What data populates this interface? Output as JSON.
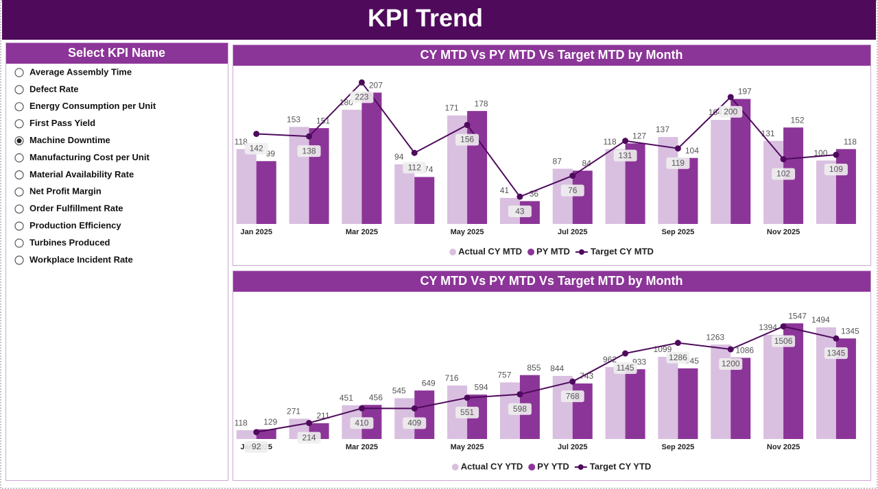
{
  "header": {
    "title": "KPI Trend"
  },
  "slicer": {
    "title": "Select KPI Name",
    "items": [
      {
        "label": "Average Assembly Time",
        "selected": false
      },
      {
        "label": "Defect Rate",
        "selected": false
      },
      {
        "label": "Energy Consumption per Unit",
        "selected": false
      },
      {
        "label": "First Pass Yield",
        "selected": false
      },
      {
        "label": "Machine Downtime",
        "selected": true
      },
      {
        "label": "Manufacturing Cost per Unit",
        "selected": false
      },
      {
        "label": "Material Availability Rate",
        "selected": false
      },
      {
        "label": "Net Profit Margin",
        "selected": false
      },
      {
        "label": "Order Fulfillment Rate",
        "selected": false
      },
      {
        "label": "Production Efficiency",
        "selected": false
      },
      {
        "label": "Turbines Produced",
        "selected": false
      },
      {
        "label": "Workplace Incident Rate",
        "selected": false
      }
    ]
  },
  "chart_data": [
    {
      "type": "combo",
      "title": "CY MTD Vs PY MTD Vs Target MTD by Month",
      "categories": [
        "Jan 2025",
        null,
        "Mar 2025",
        null,
        "May 2025",
        null,
        "Jul 2025",
        null,
        "Sep 2025",
        null,
        "Nov 2025",
        null
      ],
      "series": [
        {
          "name": "Actual CY MTD",
          "type": "bar",
          "color": "#d9bfe0",
          "values": [
            118,
            153,
            180,
            94,
            171,
            41,
            87,
            118,
            137,
            164,
            131,
            100
          ]
        },
        {
          "name": "PY MTD",
          "type": "bar",
          "color": "#8c3598",
          "values": [
            99,
            151,
            207,
            74,
            178,
            36,
            84,
            127,
            104,
            197,
            152,
            118
          ]
        },
        {
          "name": "Target CY MTD",
          "type": "line",
          "color": "#4e0a5c",
          "values": [
            142,
            138,
            223,
            112,
            156,
            43,
            76,
            131,
            119,
            200,
            102,
            109
          ]
        }
      ]
    },
    {
      "type": "combo",
      "title": "CY MTD Vs PY MTD Vs Target MTD by Month",
      "categories": [
        "Jan 2025",
        null,
        "Mar 2025",
        null,
        "May 2025",
        null,
        "Jul 2025",
        null,
        "Sep 2025",
        null,
        "Nov 2025",
        null
      ],
      "series": [
        {
          "name": "Actual CY YTD",
          "type": "bar",
          "color": "#d9bfe0",
          "values": [
            118,
            271,
            451,
            545,
            716,
            757,
            844,
            962,
            1099,
            1263,
            1394,
            1494
          ]
        },
        {
          "name": "PY YTD",
          "type": "bar",
          "color": "#8c3598",
          "values": [
            129,
            211,
            456,
            649,
            594,
            855,
            743,
            933,
            945,
            1086,
            1547,
            1345
          ]
        },
        {
          "name": "Target CY YTD",
          "type": "line",
          "color": "#4e0a5c",
          "values": [
            92,
            214,
            410,
            409,
            551,
            598,
            768,
            1145,
            1286,
            1200,
            1506,
            1345
          ]
        }
      ]
    }
  ]
}
